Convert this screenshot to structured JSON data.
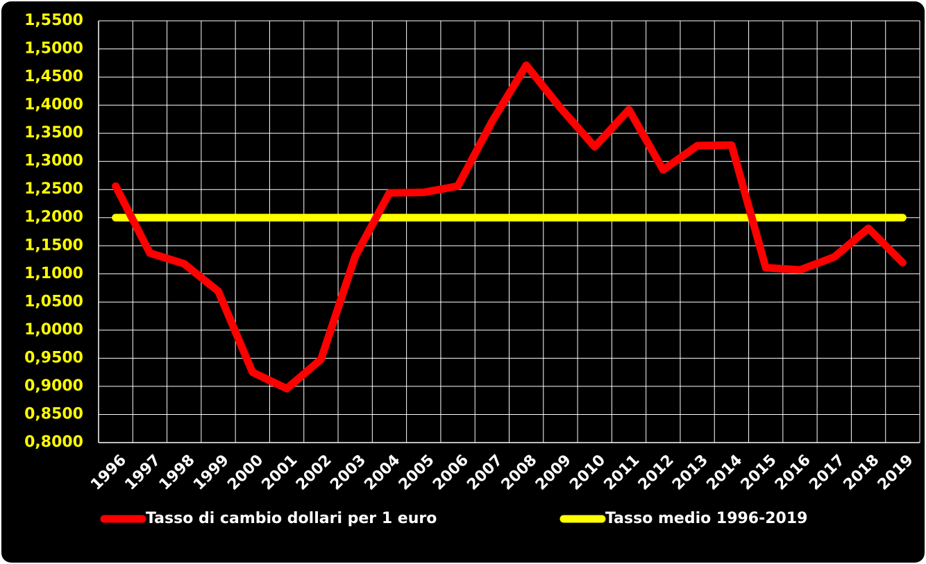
{
  "chart_data": {
    "type": "line",
    "categories": [
      "1996",
      "1997",
      "1998",
      "1999",
      "2000",
      "2001",
      "2002",
      "2003",
      "2004",
      "2005",
      "2006",
      "2007",
      "2008",
      "2009",
      "2010",
      "2011",
      "2012",
      "2013",
      "2014",
      "2015",
      "2016",
      "2017",
      "2018",
      "2019"
    ],
    "series": [
      {
        "name": "Tasso di cambio dollari per 1 euro",
        "color": "#ff0000",
        "values": [
          1.256,
          1.137,
          1.118,
          1.069,
          0.925,
          0.896,
          0.948,
          1.131,
          1.244,
          1.245,
          1.256,
          1.371,
          1.471,
          1.395,
          1.326,
          1.392,
          1.285,
          1.328,
          1.329,
          1.111,
          1.107,
          1.13,
          1.181,
          1.12
        ]
      },
      {
        "name": "Tasso medio 1996-2019",
        "color": "#ffff00",
        "values": [
          1.2,
          1.2,
          1.2,
          1.2,
          1.2,
          1.2,
          1.2,
          1.2,
          1.2,
          1.2,
          1.2,
          1.2,
          1.2,
          1.2,
          1.2,
          1.2,
          1.2,
          1.2,
          1.2,
          1.2,
          1.2,
          1.2,
          1.2,
          1.2
        ]
      }
    ],
    "ylim": [
      0.8,
      1.55
    ],
    "yticks": [
      {
        "value": 0.8,
        "label": "0,8000"
      },
      {
        "value": 0.85,
        "label": "0,8500"
      },
      {
        "value": 0.9,
        "label": "0,9000"
      },
      {
        "value": 0.95,
        "label": "0,9500"
      },
      {
        "value": 1.0,
        "label": "1,0000"
      },
      {
        "value": 1.05,
        "label": "1,0500"
      },
      {
        "value": 1.1,
        "label": "1,1000"
      },
      {
        "value": 1.15,
        "label": "1,1500"
      },
      {
        "value": 1.2,
        "label": "1,2000"
      },
      {
        "value": 1.25,
        "label": "1,2500"
      },
      {
        "value": 1.3,
        "label": "1,3000"
      },
      {
        "value": 1.35,
        "label": "1,3500"
      },
      {
        "value": 1.4,
        "label": "1,4000"
      },
      {
        "value": 1.45,
        "label": "1,4500"
      },
      {
        "value": 1.5,
        "label": "1,5000"
      },
      {
        "value": 1.55,
        "label": "1,5500"
      }
    ],
    "grid": true,
    "legend": "bottom"
  }
}
